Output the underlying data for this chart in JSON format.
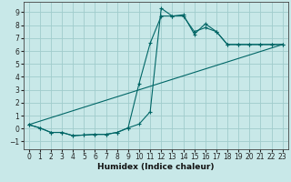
{
  "bg_color": "#c8e8e8",
  "grid_color": "#a0cccc",
  "line_color": "#006666",
  "xlim": [
    -0.5,
    23.5
  ],
  "ylim": [
    -1.6,
    9.8
  ],
  "xticks": [
    0,
    1,
    2,
    3,
    4,
    5,
    6,
    7,
    8,
    9,
    10,
    11,
    12,
    13,
    14,
    15,
    16,
    17,
    18,
    19,
    20,
    21,
    22,
    23
  ],
  "yticks": [
    -1,
    0,
    1,
    2,
    3,
    4,
    5,
    6,
    7,
    8,
    9
  ],
  "xlabel": "Humidex (Indice chaleur)",
  "line1_x": [
    0,
    1,
    2,
    3,
    4,
    5,
    6,
    7,
    8,
    9,
    10,
    11,
    12,
    13,
    14,
    15,
    16,
    17,
    18,
    19,
    20,
    21,
    22,
    23
  ],
  "line1_y": [
    0.3,
    0.05,
    -0.3,
    -0.3,
    -0.55,
    -0.5,
    -0.45,
    -0.45,
    -0.3,
    0.05,
    0.35,
    1.3,
    9.3,
    8.7,
    8.8,
    7.3,
    8.1,
    7.5,
    6.5,
    6.5,
    6.5,
    6.5,
    6.5,
    6.5
  ],
  "line2_x": [
    0,
    1,
    2,
    3,
    4,
    5,
    6,
    7,
    8,
    9,
    10,
    11,
    12,
    13,
    14,
    15,
    16,
    17,
    18,
    19,
    20,
    21,
    22,
    23
  ],
  "line2_y": [
    0.3,
    0.05,
    -0.3,
    -0.3,
    -0.55,
    -0.5,
    -0.45,
    -0.45,
    -0.3,
    0.05,
    3.5,
    6.6,
    8.7,
    8.7,
    8.7,
    7.5,
    7.8,
    7.5,
    6.5,
    6.5,
    6.5,
    6.5,
    6.5,
    6.5
  ],
  "line3_x": [
    0,
    23
  ],
  "line3_y": [
    0.3,
    6.5
  ],
  "tick_fontsize": 5.5,
  "xlabel_fontsize": 6.5
}
